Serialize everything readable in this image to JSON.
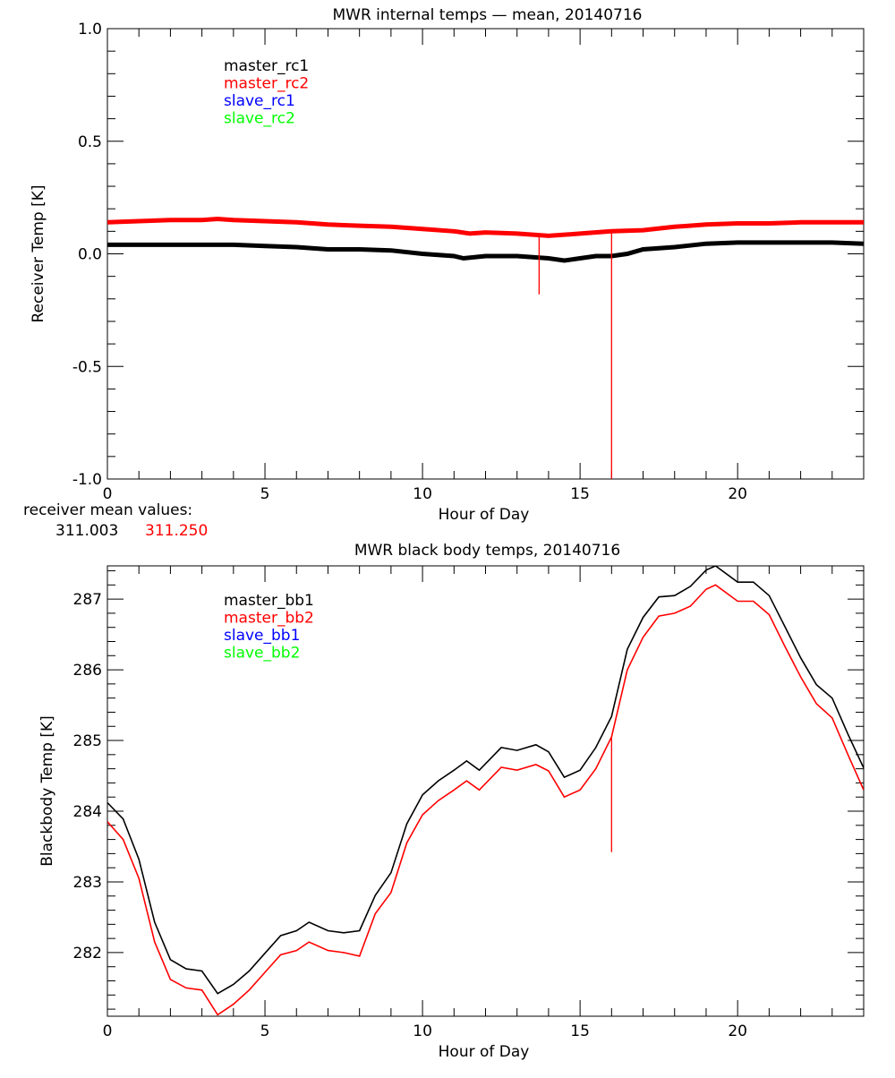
{
  "chart_data": [
    {
      "type": "line",
      "title": "MWR internal temps — mean, 20140716",
      "xlabel": "Hour of Day",
      "ylabel": "Receiver Temp [K]",
      "xlim": [
        0,
        24
      ],
      "ylim": [
        -1.0,
        1.0
      ],
      "xticks": [
        0,
        5,
        10,
        15,
        20
      ],
      "yticks": [
        1.0,
        0.5,
        0.0,
        -0.5,
        -1.0
      ],
      "ytick_labels": [
        "1.0",
        "0.5",
        "0.0",
        "-0.5",
        "-1.0"
      ],
      "grid": false,
      "legend_placement": "top-left",
      "legend": [
        {
          "name": "master_rc1",
          "color": "#000000"
        },
        {
          "name": "master_rc2",
          "color": "#ff0000"
        },
        {
          "name": "slave_rc1",
          "color": "#0000ff"
        },
        {
          "name": "slave_rc2",
          "color": "#00ff00"
        }
      ],
      "series": [
        {
          "name": "master_rc1",
          "color": "#000000",
          "x": [
            0,
            1,
            2,
            3,
            4,
            5,
            6,
            7,
            8,
            9,
            10,
            11,
            11.3,
            12,
            13,
            14,
            14.5,
            15,
            15.5,
            16,
            16.5,
            17,
            18,
            19,
            20,
            21,
            22,
            23,
            24
          ],
          "y": [
            0.04,
            0.04,
            0.04,
            0.04,
            0.04,
            0.035,
            0.03,
            0.02,
            0.02,
            0.015,
            0.0,
            -0.01,
            -0.02,
            -0.01,
            -0.01,
            -0.02,
            -0.03,
            -0.02,
            -0.01,
            -0.01,
            0.0,
            0.02,
            0.03,
            0.045,
            0.05,
            0.05,
            0.05,
            0.05,
            0.045
          ],
          "spikes": []
        },
        {
          "name": "master_rc2",
          "color": "#ff0000",
          "x": [
            0,
            1,
            2,
            3,
            3.5,
            4,
            5,
            6,
            7,
            8,
            9,
            10,
            11,
            11.5,
            12,
            13,
            14,
            15,
            16,
            17,
            18,
            19,
            20,
            21,
            22,
            23,
            24
          ],
          "y": [
            0.14,
            0.145,
            0.15,
            0.15,
            0.155,
            0.15,
            0.145,
            0.14,
            0.13,
            0.125,
            0.12,
            0.11,
            0.1,
            0.09,
            0.095,
            0.09,
            0.08,
            0.09,
            0.1,
            0.105,
            0.12,
            0.13,
            0.135,
            0.135,
            0.14,
            0.14,
            0.14
          ],
          "spikes": [
            {
              "x": 13.7,
              "y": -0.18
            },
            {
              "x": 16.0,
              "y": -1.0
            }
          ]
        }
      ],
      "annotation_label": "receiver mean values:",
      "mean_values": [
        {
          "text": "311.003",
          "color": "#000000"
        },
        {
          "text": "311.250",
          "color": "#ff0000"
        }
      ]
    },
    {
      "type": "line",
      "title": "MWR black body temps, 20140716",
      "xlabel": "Hour of Day",
      "ylabel": "Blackbody Temp [K]",
      "xlim": [
        0,
        24
      ],
      "ylim": [
        281.1,
        287.47
      ],
      "xticks": [
        0,
        5,
        10,
        15,
        20
      ],
      "yticks": [
        282,
        283,
        284,
        285,
        286,
        287
      ],
      "ytick_labels": [
        "282",
        "283",
        "284",
        "285",
        "286",
        "287"
      ],
      "grid": false,
      "legend_placement": "top-left",
      "legend": [
        {
          "name": "master_bb1",
          "color": "#000000"
        },
        {
          "name": "master_bb2",
          "color": "#ff0000"
        },
        {
          "name": "slave_bb1",
          "color": "#0000ff"
        },
        {
          "name": "slave_bb2",
          "color": "#00ff00"
        }
      ],
      "series": [
        {
          "name": "master_bb1",
          "color": "#000000",
          "x": [
            0,
            0.5,
            1,
            1.5,
            2,
            2.5,
            3,
            3.5,
            4,
            4.5,
            5,
            5.5,
            6,
            6.4,
            7,
            7.5,
            8,
            8.5,
            9,
            9.5,
            10,
            10.5,
            11,
            11.4,
            11.8,
            12.5,
            13,
            13.6,
            14,
            14.5,
            15,
            15.5,
            16,
            16.5,
            17,
            17.5,
            18,
            18.5,
            19,
            19.3,
            20,
            20.5,
            21,
            21.5,
            22,
            22.5,
            23,
            23.5,
            24
          ],
          "y": [
            284.12,
            283.89,
            283.32,
            282.43,
            281.9,
            281.77,
            281.74,
            281.42,
            281.55,
            281.74,
            281.99,
            282.24,
            282.31,
            282.43,
            282.31,
            282.28,
            282.31,
            282.81,
            283.13,
            283.82,
            284.23,
            284.43,
            284.58,
            284.71,
            284.58,
            284.9,
            284.86,
            284.94,
            284.84,
            284.48,
            284.58,
            284.9,
            285.34,
            286.29,
            286.74,
            287.03,
            287.05,
            287.18,
            287.41,
            287.47,
            287.24,
            287.24,
            287.05,
            286.61,
            286.17,
            285.79,
            285.6,
            285.09,
            284.61
          ],
          "spikes": []
        },
        {
          "name": "master_bb2",
          "color": "#ff0000",
          "x": [
            0,
            0.5,
            1,
            1.5,
            2,
            2.5,
            3,
            3.5,
            4,
            4.5,
            5,
            5.5,
            6,
            6.4,
            7,
            7.5,
            8,
            8.5,
            9,
            9.5,
            10,
            10.5,
            11,
            11.4,
            11.8,
            12.5,
            13,
            13.6,
            14,
            14.5,
            15,
            15.5,
            16,
            16.5,
            17,
            17.5,
            18,
            18.5,
            19,
            19.3,
            20,
            20.5,
            21,
            21.5,
            22,
            22.5,
            23,
            23.5,
            24
          ],
          "y": [
            283.85,
            283.6,
            283.05,
            282.15,
            281.62,
            281.5,
            281.47,
            281.12,
            281.27,
            281.47,
            281.72,
            281.97,
            282.03,
            282.15,
            282.03,
            282.0,
            281.95,
            282.55,
            282.85,
            283.55,
            283.95,
            284.15,
            284.3,
            284.43,
            284.3,
            284.62,
            284.58,
            284.66,
            284.57,
            284.2,
            284.3,
            284.6,
            285.05,
            286.0,
            286.46,
            286.76,
            286.8,
            286.9,
            287.14,
            287.2,
            286.97,
            286.97,
            286.78,
            286.33,
            285.9,
            285.52,
            285.32,
            284.8,
            284.3
          ],
          "spikes": [
            {
              "x": 16.0,
              "y": 283.42
            }
          ]
        }
      ]
    }
  ]
}
